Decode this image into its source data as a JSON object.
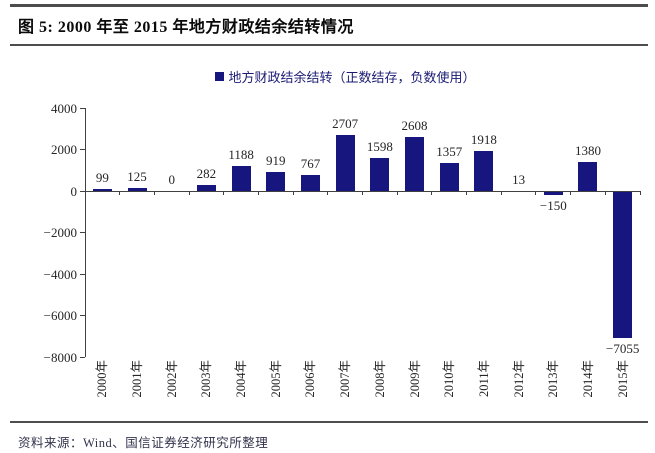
{
  "header": {
    "title": "图 5: 2000 年至 2015 年地方财政结余结转情况"
  },
  "chart_data": {
    "type": "bar",
    "title": "",
    "legend": "地方财政结余结转（正数结存，负数使用）",
    "categories": [
      "2000年",
      "2001年",
      "2002年",
      "2003年",
      "2004年",
      "2005年",
      "2006年",
      "2007年",
      "2008年",
      "2009年",
      "2010年",
      "2011年",
      "2012年",
      "2013年",
      "2014年",
      "2015年"
    ],
    "values": [
      99,
      125,
      0,
      282,
      1188,
      919,
      767,
      2707,
      1598,
      2608,
      1357,
      1918,
      13,
      -150,
      1380,
      -7055
    ],
    "value_labels": [
      "99",
      "125",
      "0",
      "282",
      "1188",
      "919",
      "767",
      "2707",
      "1598",
      "2608",
      "1357",
      "1918",
      "13",
      "−150",
      "1380",
      "−7055"
    ],
    "ylim": [
      -8000,
      4000
    ],
    "ytick_step": 2000,
    "ytick_labels": [
      "4000",
      "2000",
      "0",
      "−2000",
      "−4000",
      "−6000",
      "−8000"
    ],
    "grid": false,
    "legend_position": "top-center",
    "xlabel": "",
    "ylabel": ""
  },
  "footer": {
    "source": "资料来源：Wind、国信证券经济研究所整理"
  },
  "colors": {
    "bar": "#16167E",
    "legend_text": "#1B1B75",
    "axis": "#404040",
    "rule": "#4D4D4D"
  }
}
